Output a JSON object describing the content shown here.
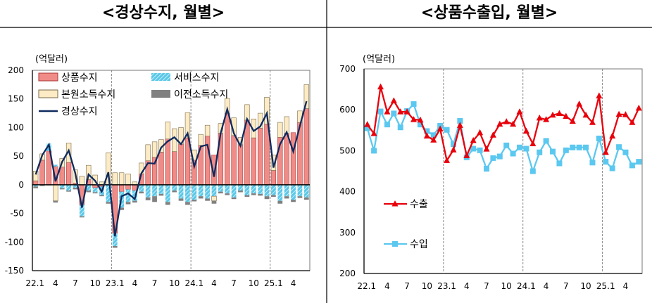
{
  "chart_data": [
    {
      "type": "bar",
      "stacked": true,
      "title": "<경상수지, 월별>",
      "unit": "(억달러)",
      "ylim": [
        -150,
        200
      ],
      "yticks": [
        -150,
        -100,
        -50,
        0,
        50,
        100,
        150,
        200
      ],
      "grid": false,
      "legend": "top-left",
      "categories": [
        "22.1",
        "22.2",
        "22.3",
        "22.4",
        "22.5",
        "22.6",
        "22.7",
        "22.8",
        "22.9",
        "22.10",
        "22.11",
        "22.12",
        "23.1",
        "23.2",
        "23.3",
        "23.4",
        "23.5",
        "23.6",
        "23.7",
        "23.8",
        "23.9",
        "23.10",
        "23.11",
        "23.12",
        "24.1",
        "24.2",
        "24.3",
        "24.4",
        "24.5",
        "24.6",
        "24.7",
        "24.8",
        "24.9",
        "24.10",
        "24.11",
        "24.12",
        "25.1",
        "25.2",
        "25.3",
        "25.4",
        "25.5",
        "25.6"
      ],
      "xtick_labels": [
        "22.1",
        "4",
        "7",
        "10",
        "23.1",
        "4",
        "7",
        "10",
        "24.1",
        "4",
        "7",
        "10",
        "25.1",
        "4"
      ],
      "series": [
        {
          "name": "상품수지",
          "kind": "bar",
          "color": "#f08c88",
          "values": [
            7,
            43,
            59,
            32,
            31,
            39,
            3,
            -35,
            9,
            -5,
            -3,
            0,
            -85,
            -12,
            -8,
            -10,
            19,
            42,
            48,
            57,
            80,
            58,
            71,
            82,
            43,
            69,
            85,
            52,
            90,
            125,
            86,
            70,
            113,
            82,
            99,
            106,
            25,
            83,
            90,
            91,
            109,
            133
          ]
        },
        {
          "name": "서비스수지",
          "kind": "bar",
          "color": "#5bc8e8",
          "values": [
            -3,
            0,
            13,
            3,
            -6,
            -10,
            -5,
            -20,
            -10,
            -8,
            -15,
            -30,
            -22,
            -28,
            -22,
            -18,
            -12,
            -22,
            -20,
            -16,
            -30,
            -10,
            -24,
            -30,
            -26,
            -20,
            -24,
            -20,
            -12,
            -15,
            -22,
            -10,
            -18,
            -15,
            -16,
            -20,
            -18,
            -28,
            -20,
            -26,
            -20,
            -22
          ]
        },
        {
          "name": "본원소득수지",
          "kind": "bar",
          "color": "#fcebc4",
          "values": [
            17,
            11,
            0,
            -28,
            15,
            34,
            23,
            15,
            25,
            17,
            5,
            56,
            21,
            21,
            19,
            5,
            19,
            28,
            27,
            22,
            30,
            40,
            29,
            44,
            18,
            19,
            19,
            -8,
            17,
            26,
            31,
            13,
            27,
            33,
            26,
            47,
            27,
            26,
            29,
            0,
            20,
            42
          ]
        },
        {
          "name": "이전소득수지",
          "kind": "bar",
          "color": "#808080",
          "values": [
            -3,
            -2,
            -1,
            -3,
            -2,
            -2,
            -3,
            -2,
            -3,
            -2,
            -2,
            -3,
            -3,
            -4,
            -4,
            -3,
            -3,
            -5,
            -10,
            -3,
            -5,
            -3,
            -4,
            -5,
            -3,
            -4,
            -4,
            -5,
            -3,
            -3,
            -3,
            -3,
            -3,
            -3,
            -3,
            -5,
            -3,
            -5,
            -4,
            -4,
            -3,
            -4
          ]
        },
        {
          "name": "경상수지",
          "kind": "line",
          "color": "#0f2a5e",
          "values": [
            18,
            52,
            70,
            6,
            40,
            60,
            20,
            -40,
            18,
            7,
            -12,
            22,
            -90,
            -20,
            -15,
            -25,
            20,
            38,
            37,
            65,
            76,
            83,
            71,
            90,
            32,
            67,
            70,
            14,
            90,
            132,
            90,
            68,
            115,
            94,
            102,
            125,
            30,
            71,
            92,
            58,
            103,
            146
          ]
        }
      ]
    },
    {
      "type": "line",
      "title": "<상품수출입, 월별>",
      "unit": "(억달러)",
      "ylim": [
        200,
        700
      ],
      "yticks": [
        200,
        300,
        400,
        500,
        600,
        700
      ],
      "grid": false,
      "legend": "left",
      "categories": [
        "22.1",
        "22.2",
        "22.3",
        "22.4",
        "22.5",
        "22.6",
        "22.7",
        "22.8",
        "22.9",
        "22.10",
        "22.11",
        "22.12",
        "23.1",
        "23.2",
        "23.3",
        "23.4",
        "23.5",
        "23.6",
        "23.7",
        "23.8",
        "23.9",
        "23.10",
        "23.11",
        "23.12",
        "24.1",
        "24.2",
        "24.3",
        "24.4",
        "24.5",
        "24.6",
        "24.7",
        "24.8",
        "24.9",
        "24.10",
        "24.11",
        "24.12",
        "25.1",
        "25.2",
        "25.3",
        "25.4",
        "25.5",
        "25.6"
      ],
      "xtick_labels": [
        "22.1",
        "4",
        "7",
        "10",
        "23.1",
        "4",
        "7",
        "10",
        "24.1",
        "4",
        "7",
        "10",
        "25.1",
        "4"
      ],
      "series": [
        {
          "name": "수출",
          "color": "#e8000b",
          "marker": "triangle",
          "values": [
            564,
            542,
            656,
            595,
            622,
            595,
            595,
            576,
            575,
            536,
            526,
            553,
            476,
            502,
            562,
            488,
            525,
            544,
            504,
            538,
            565,
            571,
            565,
            595,
            548,
            517,
            580,
            576,
            587,
            591,
            584,
            572,
            614,
            587,
            569,
            634,
            496,
            536,
            589,
            588,
            569,
            604
          ]
        },
        {
          "name": "수입",
          "color": "#5bc8f0",
          "marker": "square",
          "values": [
            555,
            500,
            596,
            564,
            591,
            557,
            597,
            614,
            564,
            548,
            538,
            561,
            551,
            516,
            573,
            484,
            505,
            501,
            456,
            482,
            486,
            513,
            493,
            508,
            505,
            450,
            496,
            524,
            498,
            469,
            501,
            508,
            508,
            508,
            471,
            530,
            473,
            457,
            509,
            496,
            464,
            473
          ]
        }
      ]
    }
  ]
}
